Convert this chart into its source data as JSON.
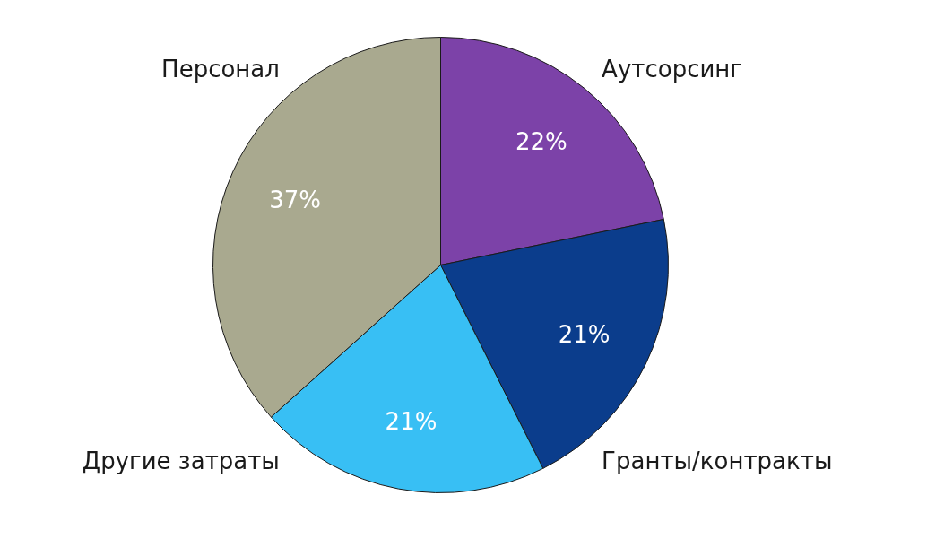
{
  "chart_data": {
    "type": "pie",
    "categories": [
      "Аутсорсинг",
      "Гранты/контракты",
      "Другие затраты",
      "Персонал"
    ],
    "values": [
      22,
      21,
      21,
      37
    ],
    "value_labels": [
      "22%",
      "21%",
      "21%",
      "37%"
    ],
    "colors": [
      "#7c42a8",
      "#0b3d8c",
      "#38bff4",
      "#a9a98f"
    ]
  }
}
